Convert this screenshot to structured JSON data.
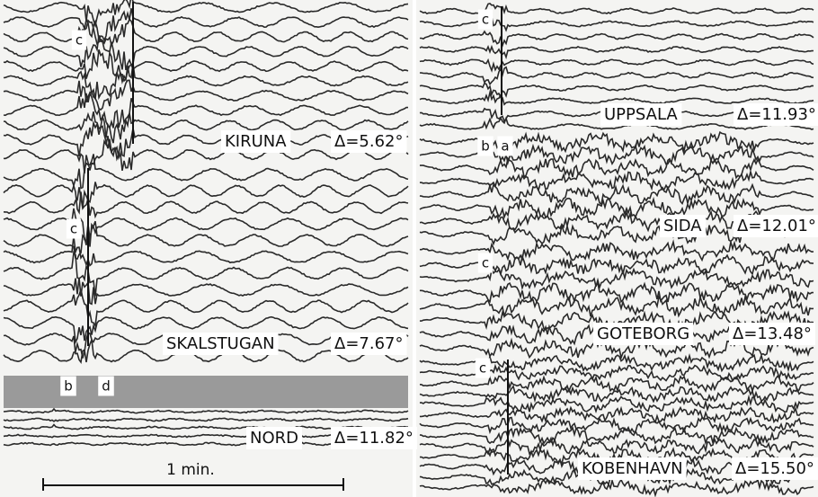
{
  "panels": [
    {
      "station": "KIRUNA",
      "distance": "Δ=5.62°",
      "phases": [
        "c"
      ]
    },
    {
      "station": "SKALSTUGAN",
      "distance": "Δ=7.67°",
      "phases": [
        "c"
      ]
    },
    {
      "station": "NORD",
      "distance": "Δ=11.82°",
      "phases": [
        "b",
        "d"
      ]
    },
    {
      "station": "UPPSALA",
      "distance": "Δ=11.93°",
      "phases": [
        "c"
      ]
    },
    {
      "station": "SIDA",
      "distance": "Δ=12.01°",
      "phases": [
        "b",
        "a"
      ]
    },
    {
      "station": "GOTEBORG",
      "distance": "Δ=13.48°",
      "phases": [
        "c"
      ]
    },
    {
      "station": "KOBENHAVN",
      "distance": "Δ=15.50°",
      "phases": [
        "c"
      ]
    }
  ],
  "scale": {
    "label": "1 min."
  }
}
